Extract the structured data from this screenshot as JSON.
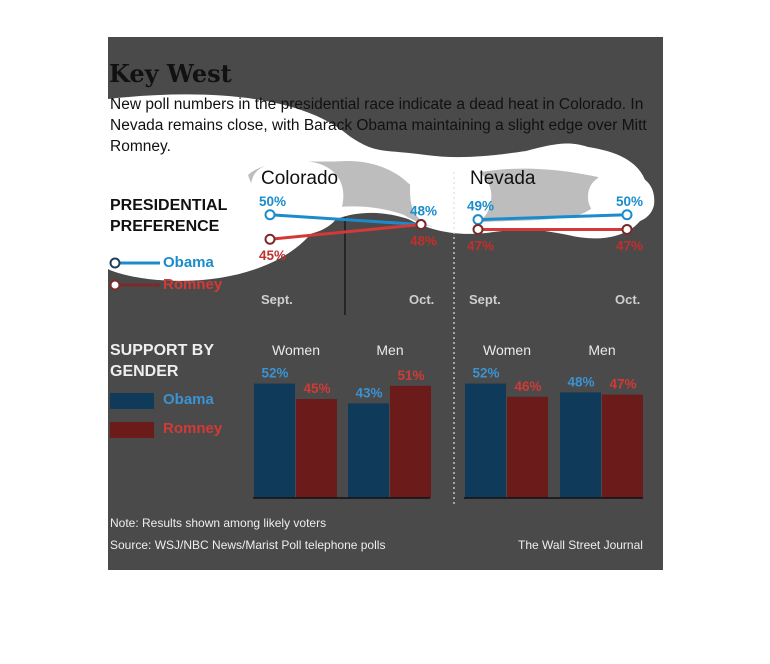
{
  "header": {
    "title": "Key West",
    "subtitle": "New poll numbers in the presidential race indicate a dead heat in Colorado. In Nevada remains close, with Barack Obama maintaining a slight edge over Mitt Romney."
  },
  "sections": {
    "preference_label": "PRESIDENTIAL PREFERENCE",
    "gender_label": "SUPPORT BY GENDER"
  },
  "legend": {
    "obama": "Obama",
    "romney": "Romney"
  },
  "colors": {
    "obama_line": "#1a8ccc",
    "romney_line": "#d33a35",
    "obama_bar": "#0f3a5a",
    "romney_bar": "#6a1b1a",
    "panel": "#4a4a4a",
    "highlight": "#ffffff"
  },
  "footer": {
    "note": "Note: Results shown among likely voters",
    "source": "Source: WSJ/NBC News/Marist Poll telephone polls",
    "credit": "The Wall Street Journal"
  },
  "chart_data": [
    {
      "type": "line",
      "state": "Colorado",
      "categories": [
        "Sept.",
        "Oct."
      ],
      "series": [
        {
          "name": "Obama",
          "values": [
            50,
            48
          ],
          "labels": [
            "50%",
            "48%"
          ]
        },
        {
          "name": "Romney",
          "values": [
            45,
            48
          ],
          "labels": [
            "45%",
            "48%"
          ]
        }
      ]
    },
    {
      "type": "line",
      "state": "Nevada",
      "categories": [
        "Sept.",
        "Oct."
      ],
      "series": [
        {
          "name": "Obama",
          "values": [
            49,
            50
          ],
          "labels": [
            "49%",
            "50%"
          ]
        },
        {
          "name": "Romney",
          "values": [
            47,
            47
          ],
          "labels": [
            "47%",
            "47%"
          ]
        }
      ]
    },
    {
      "type": "bar",
      "state": "Colorado",
      "categories": [
        "Women",
        "Men"
      ],
      "series": [
        {
          "name": "Obama",
          "values": [
            52,
            43
          ],
          "labels": [
            "52%",
            "43%"
          ]
        },
        {
          "name": "Romney",
          "values": [
            45,
            51
          ],
          "labels": [
            "45%",
            "51%"
          ]
        }
      ]
    },
    {
      "type": "bar",
      "state": "Nevada",
      "categories": [
        "Women",
        "Men"
      ],
      "series": [
        {
          "name": "Obama",
          "values": [
            52,
            48
          ],
          "labels": [
            "52%",
            "48%"
          ]
        },
        {
          "name": "Romney",
          "values": [
            46,
            47
          ],
          "labels": [
            "46%",
            "47%"
          ]
        }
      ]
    }
  ]
}
